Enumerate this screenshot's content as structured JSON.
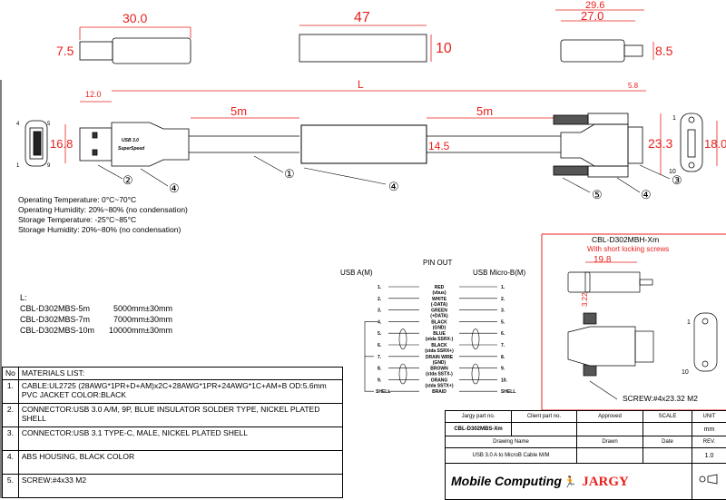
{
  "dimensions": {
    "usb_a_length": "30.0",
    "usb_a_thickness": "7.5",
    "housing_length": "47",
    "housing_thickness": "10",
    "micro_b_total": "29.6",
    "micro_b_body": "27.0",
    "micro_b_thickness": "8.5",
    "overall_length": "L",
    "usb_a_plug": "12.0",
    "usb_a_width": "16.8",
    "segment_left": "5m",
    "segment_right": "5m",
    "housing_width": "14.5",
    "micro_b_plug": "5.8",
    "micro_b_width": "23.3",
    "micro_b_face_height": "18.0"
  },
  "connector_labels": {
    "usb_a_pins": [
      "4",
      "5",
      "1",
      "9"
    ],
    "micro_b_pins": [
      "1",
      "10"
    ],
    "usb_a_logo_line1": "USB 3.0",
    "usb_a_logo_line2": "SuperSpeed"
  },
  "callouts": [
    "①",
    "②",
    "③",
    "④",
    "⑤"
  ],
  "specs": [
    "Operating Temperature: 0°C~70°C",
    "Operating Humidity: 20%~80% (no condensation)",
    "Storage Temperature: -25°C~85°C",
    "Storage  Humidity: 20%~80% (no condensation)"
  ],
  "length_table": {
    "title": "L:",
    "rows": [
      {
        "part": "CBL-D302MBS-5m",
        "length": "5000mm±30mm"
      },
      {
        "part": "CBL-D302MBS-7m",
        "length": "7000mm±30mm"
      },
      {
        "part": "CBL-D302MBS-10m",
        "length": "10000mm±30mm"
      }
    ]
  },
  "pinout": {
    "title": "PIN OUT",
    "left_header": "USB A(M)",
    "right_header": "USB Micro-B(M)",
    "rows": [
      {
        "left": "1.",
        "wire": "RED",
        "sub": "(vbus)",
        "right": "1."
      },
      {
        "left": "2.",
        "wire": "WHITE",
        "sub": "(-DATA)",
        "right": "2."
      },
      {
        "left": "3.",
        "wire": "GREEN",
        "sub": "(+DATA)",
        "right": "3."
      },
      {
        "left": "4.",
        "wire": "BLACK",
        "sub": "(GND)",
        "right": "5."
      },
      {
        "left": "5.",
        "wire": "BLUE",
        "sub": "(stda SSRX-)",
        "right": "6."
      },
      {
        "left": "6.",
        "wire": "BLACK",
        "sub": "(stda SSRX+)",
        "right": "7."
      },
      {
        "left": "7.",
        "wire": "DRAIN WIRE",
        "sub": "(GND)",
        "right": "8."
      },
      {
        "left": "8.",
        "wire": "BROWN",
        "sub": "(stda SSTX-)",
        "right": "9."
      },
      {
        "left": "9.",
        "wire": "ORANG",
        "sub": "(stda SSTX+)",
        "right": "10."
      },
      {
        "left": "SHELL",
        "wire": "BRAID",
        "sub": "",
        "right": "SHELL"
      }
    ]
  },
  "variant": {
    "title": "CBL-D302MBH-Xm",
    "subtitle": "With short locking screws",
    "dim_length": "19.8",
    "dim_height": "3.22",
    "pins": [
      "1",
      "10"
    ],
    "screw": "SCREW:#4x23.32 M2"
  },
  "materials": {
    "header_no": "No",
    "header": "MATERIALS LIST:",
    "items": [
      {
        "no": "1.",
        "text": "CABLE:UL2725 (28AWG*1PR+D+AM)x2C+28AWG*1PR+24AWG*1C+AM+B OD:5.6mm  PVC JACKET COLOR:BLACK"
      },
      {
        "no": "2.",
        "text": "CONNECTOR:USB 3.0 A/M, 9P, BLUE INSULATOR SOLDER TYPE, NICKEL PLATED SHELL"
      },
      {
        "no": "3.",
        "text": "CONNECTOR:USB 3.1 TYPE-C, MALE, NICKEL PLATED SHELL"
      },
      {
        "no": "4.",
        "text": "ABS HOUSING, BLACK COLOR"
      },
      {
        "no": "5.",
        "text": "SCREW:#4x33 M2"
      }
    ]
  },
  "title_block": {
    "jargy_part_label": "Jargy part no.",
    "client_part_label": "Client part no.",
    "approved_label": "Approved",
    "scale_label": "SCALE",
    "unit_label": "UNIT",
    "jargy_part": "CBL-D302MBS-Xm",
    "unit": "mm",
    "drawing_name_label": "Drawing Name",
    "drawn_label": "Drawn",
    "date_label": "Date",
    "rev_label": "REV.",
    "drawing_name": "USB 3.0 A to MicroB Cable M/M",
    "rev": "1.0",
    "logo_mobile": "Mobile",
    "logo_computing": "Computing",
    "logo_jargy": "JARGY"
  },
  "colors": {
    "dimension": "#e8211c",
    "line": "#000000"
  }
}
